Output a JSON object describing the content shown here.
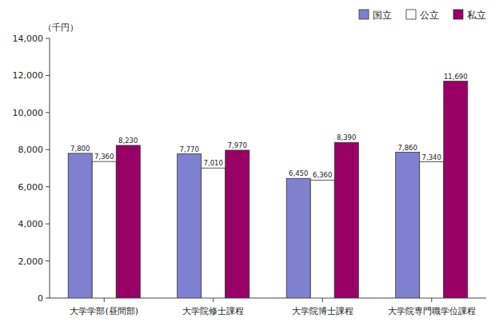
{
  "chart_data": {
    "type": "bar",
    "ylabel": "（千円）",
    "categories": [
      "大学学部(昼間部)",
      "大学院修士課程",
      "大学院博士課程",
      "大学院専門職学位課程"
    ],
    "series": [
      {
        "name": "国立",
        "color": "#8080d0",
        "values": [
          7800,
          7770,
          6450,
          7860
        ],
        "value_labels": [
          "7,800",
          "7,770",
          "6,450",
          "7,860"
        ]
      },
      {
        "name": "公立",
        "color": "#ffffff",
        "values": [
          7360,
          7010,
          6360,
          7340
        ],
        "value_labels": [
          "7,360",
          "7,010",
          "6,360",
          "7,340"
        ]
      },
      {
        "name": "私立",
        "color": "#990066",
        "values": [
          8230,
          7970,
          8390,
          11690
        ],
        "value_labels": [
          "8,230",
          "7,970",
          "8,390",
          "11,690"
        ]
      }
    ],
    "ylim": [
      0,
      14000
    ],
    "yticks": [
      0,
      {
        "value": 2000,
        "label": "2,000"
      },
      {
        "value": 4000,
        "label": "4,000"
      },
      {
        "value": 6000,
        "label": "6,000"
      },
      {
        "value": 8000,
        "label": "8,000"
      },
      {
        "value": 10000,
        "label": "10,000"
      },
      {
        "value": 12000,
        "label": "12,000"
      },
      {
        "value": 14000,
        "label": "14,000"
      }
    ],
    "data_labels": true,
    "legend": "upper right",
    "grid": false
  }
}
